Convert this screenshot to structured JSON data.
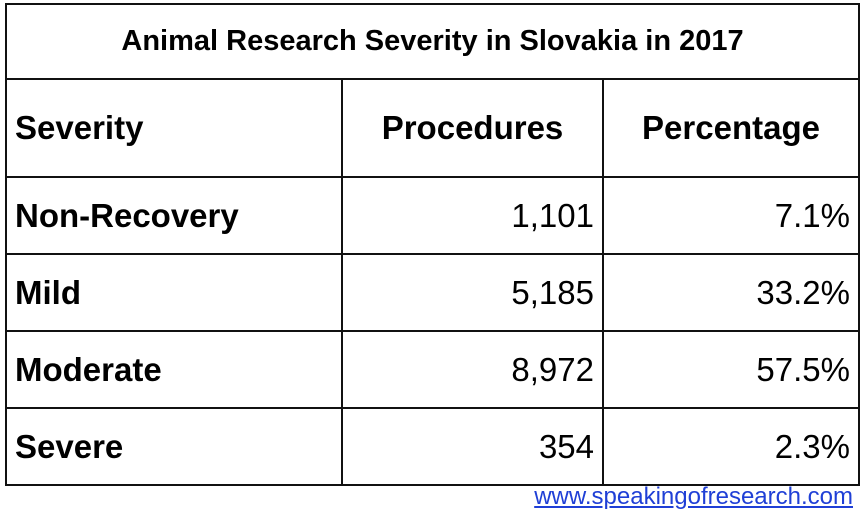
{
  "table": {
    "title": "Animal Research Severity in Slovakia in 2017",
    "headers": [
      "Severity",
      "Procedures",
      "Percentage"
    ],
    "rows": [
      [
        "Non-Recovery",
        "1,101",
        "7.1%"
      ],
      [
        "Mild",
        "5,185",
        "33.2%"
      ],
      [
        "Moderate",
        "8,972",
        "57.5%"
      ],
      [
        "Severe",
        "354",
        "2.3%"
      ]
    ]
  },
  "source_link": "www.speakingofresearch.com",
  "chart_data": {
    "type": "table",
    "title": "Animal Research Severity in Slovakia in 2017",
    "columns": [
      "Severity",
      "Procedures",
      "Percentage"
    ],
    "rows": [
      {
        "Severity": "Non-Recovery",
        "Procedures": 1101,
        "Percentage": 7.1
      },
      {
        "Severity": "Mild",
        "Procedures": 5185,
        "Percentage": 33.2
      },
      {
        "Severity": "Moderate",
        "Procedures": 8972,
        "Percentage": 57.5
      },
      {
        "Severity": "Severe",
        "Procedures": 354,
        "Percentage": 2.3
      }
    ]
  }
}
